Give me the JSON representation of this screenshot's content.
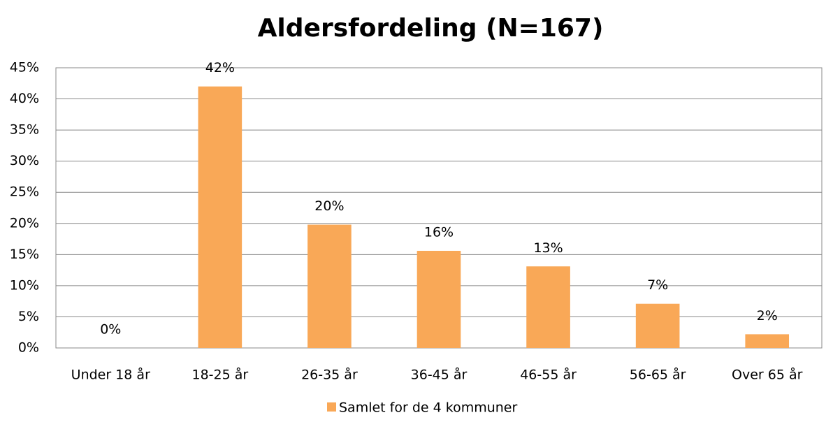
{
  "chart_data": {
    "type": "bar",
    "title": "Aldersfordeling (N=167)",
    "categories": [
      "Under 18 år",
      "18-25 år",
      "26-35 år",
      "36-45 år",
      "46-55 år",
      "56-65 år",
      "Over 65 år"
    ],
    "series": [
      {
        "name": "Samlet for de 4 kommuner",
        "color": "#f9a857",
        "values": [
          0,
          42,
          19.8,
          15.6,
          13.1,
          7.1,
          2.2
        ],
        "value_labels": [
          "0%",
          "42%",
          "20%",
          "16%",
          "13%",
          "7%",
          "2%"
        ]
      }
    ],
    "ylim": [
      0,
      45
    ],
    "yticks": [
      {
        "value": 0,
        "label": "0%"
      },
      {
        "value": 5,
        "label": "5%"
      },
      {
        "value": 10,
        "label": "10%"
      },
      {
        "value": 15,
        "label": "15%"
      },
      {
        "value": 20,
        "label": "20%"
      },
      {
        "value": 25,
        "label": "25%"
      },
      {
        "value": 30,
        "label": "30%"
      },
      {
        "value": 35,
        "label": "35%"
      },
      {
        "value": 40,
        "label": "40%"
      },
      {
        "value": 45,
        "label": "45%"
      }
    ],
    "grid": true,
    "legend": "bottom"
  }
}
